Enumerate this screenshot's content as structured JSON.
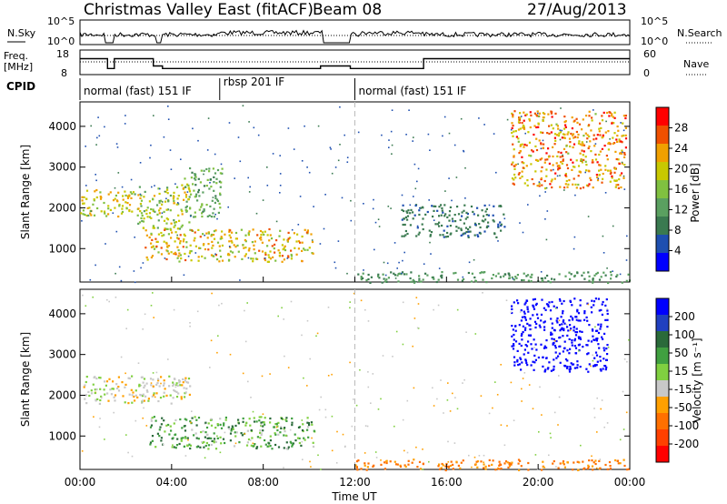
{
  "header": {
    "title": "Christmas Valley East (fitACF)",
    "beam": "Beam 08",
    "date": "27/Aug/2013"
  },
  "chart_data": [
    {
      "type": "line",
      "panel": "noise",
      "left_label": "N.Sky",
      "right_label": "N.Search",
      "left_ticks": [
        "10^5",
        "10^0"
      ],
      "right_ticks": [
        "10^5",
        "10^0"
      ]
    },
    {
      "type": "line",
      "panel": "frequency",
      "left_label": "Freq.",
      "left_unit": "[MHz]",
      "left_ticks": [
        "18",
        "8"
      ],
      "right_label": "Nave",
      "right_ticks": [
        "60",
        "0"
      ],
      "freq_steps": [
        {
          "start": 0.0,
          "end": 1.2,
          "mhz": 14.5
        },
        {
          "start": 1.2,
          "end": 1.5,
          "mhz": 10.5
        },
        {
          "start": 1.5,
          "end": 3.2,
          "mhz": 14.5
        },
        {
          "start": 3.2,
          "end": 3.6,
          "mhz": 11.5
        },
        {
          "start": 3.6,
          "end": 10.5,
          "mhz": 10.5
        },
        {
          "start": 10.5,
          "end": 11.8,
          "mhz": 11.5
        },
        {
          "start": 11.8,
          "end": 12.2,
          "mhz": 10.5
        },
        {
          "start": 12.2,
          "end": 15.0,
          "mhz": 10.5
        },
        {
          "start": 15.0,
          "end": 24.0,
          "mhz": 14.5
        }
      ]
    },
    {
      "type": "table",
      "panel": "cpid",
      "label": "CPID",
      "segments": [
        {
          "label": "normal (fast) 151 IF",
          "start": 0,
          "end": 6.1
        },
        {
          "label": "rbsp 201 IF",
          "start": 6.1,
          "end": 12.0
        },
        {
          "label": "normal (fast) 151 IF",
          "start": 12.0,
          "end": 24.0
        }
      ]
    },
    {
      "type": "heatmap",
      "panel": "power",
      "ylabel": "Slant Range [km]",
      "yticks": [
        1000,
        2000,
        3000,
        4000
      ],
      "ylim": [
        180,
        4600
      ],
      "xlim": [
        0,
        24
      ],
      "colorbar_label": "Power [dB]",
      "colorbar_ticks": [
        4,
        8,
        12,
        16,
        20,
        24,
        28
      ],
      "colorbar_colors": [
        "#0000ff",
        "#1e4fb0",
        "#3a7a50",
        "#5aa060",
        "#80c040",
        "#c8c800",
        "#f0a000",
        "#f05000",
        "#ff0000"
      ],
      "features": [
        {
          "t0": 0.0,
          "t1": 2.6,
          "r0": 1800,
          "r1": 2500,
          "peak": 22
        },
        {
          "t0": 2.5,
          "t1": 4.8,
          "r0": 1500,
          "r1": 2600,
          "peak": 20
        },
        {
          "t0": 2.8,
          "t1": 10.2,
          "r0": 700,
          "r1": 1500,
          "peak": 24
        },
        {
          "t0": 4.5,
          "t1": 6.2,
          "r0": 1800,
          "r1": 3000,
          "peak": 14
        },
        {
          "t0": 12.0,
          "t1": 24.0,
          "r0": 180,
          "r1": 450,
          "peak": 12
        },
        {
          "t0": 14.0,
          "t1": 18.5,
          "r0": 1300,
          "r1": 2100,
          "peak": 8
        },
        {
          "t0": 18.8,
          "t1": 23.8,
          "r0": 2500,
          "r1": 4400,
          "peak": 28
        }
      ]
    },
    {
      "type": "heatmap",
      "panel": "velocity",
      "ylabel": "Slant Range [km]",
      "yticks": [
        1000,
        2000,
        3000,
        4000
      ],
      "ylim": [
        180,
        4600
      ],
      "xlim": [
        0,
        24
      ],
      "xticks": [
        "00:00",
        "04:00",
        "08:00",
        "12:00",
        "16:00",
        "20:00",
        "00:00"
      ],
      "xlabel": "Time UT",
      "colorbar_label": "Velocity [m s⁻¹]",
      "colorbar_ticks": [
        200,
        100,
        50,
        15,
        -15,
        -50,
        -100,
        -200
      ],
      "colorbar_colors": [
        "#0000ff",
        "#2040c0",
        "#2a6a3a",
        "#40a040",
        "#80d040",
        "#c8c8c8",
        "#ffa000",
        "#ff7000",
        "#ff4000",
        "#ff0000"
      ],
      "features": [
        {
          "t0": 0.0,
          "t1": 4.8,
          "r0": 1800,
          "r1": 2500,
          "v": 0
        },
        {
          "t0": 3.0,
          "t1": 10.2,
          "r0": 700,
          "r1": 1500,
          "v": 40
        },
        {
          "t0": 12.0,
          "t1": 24.0,
          "r0": 180,
          "r1": 450,
          "v": -60
        },
        {
          "t0": 18.8,
          "t1": 23.0,
          "r0": 2600,
          "r1": 4400,
          "v": 180
        }
      ]
    }
  ]
}
